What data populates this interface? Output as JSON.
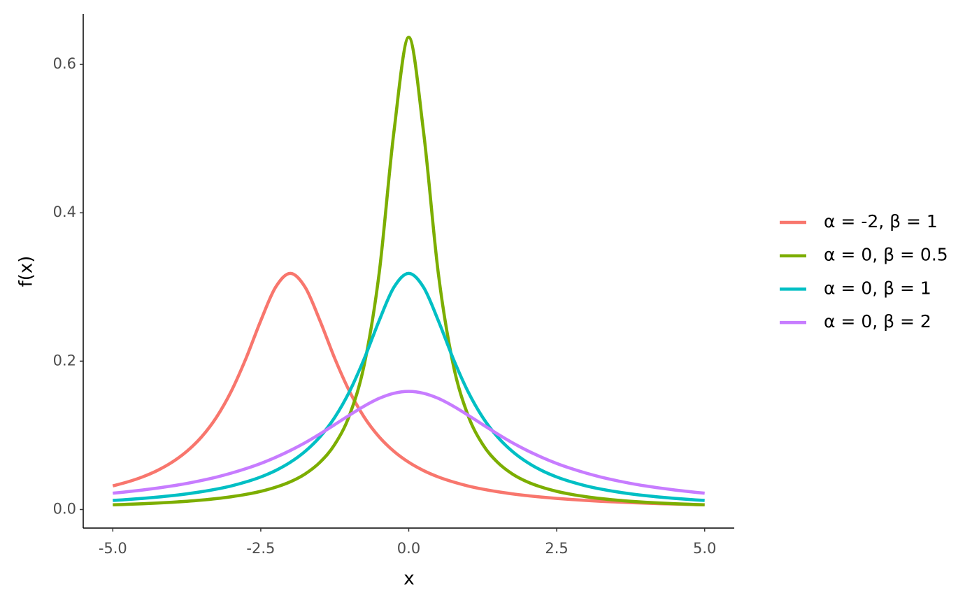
{
  "chart_data": {
    "type": "line",
    "x_label": "x",
    "y_label": "f(x)",
    "x": [
      -5,
      -4.75,
      -4.5,
      -4.25,
      -4,
      -3.75,
      -3.5,
      -3.25,
      -3,
      -2.75,
      -2.5,
      -2.25,
      -2,
      -1.75,
      -1.5,
      -1.25,
      -1,
      -0.75,
      -0.5,
      -0.25,
      0,
      0.25,
      0.5,
      0.75,
      1,
      1.25,
      1.5,
      1.75,
      2,
      2.25,
      2.5,
      2.75,
      3,
      3.25,
      3.5,
      3.75,
      4,
      4.25,
      4.5,
      4.75,
      5
    ],
    "series": [
      {
        "name": "α = -2, β = 1",
        "color": "#F8766D",
        "values": [
          0.0318,
          0.0372,
          0.0439,
          0.0525,
          0.0637,
          0.0784,
          0.0979,
          0.1242,
          0.1592,
          0.2037,
          0.2546,
          0.2996,
          0.3183,
          0.2996,
          0.2546,
          0.2037,
          0.1592,
          0.1242,
          0.0979,
          0.0784,
          0.0637,
          0.0525,
          0.0439,
          0.0372,
          0.0318,
          0.0275,
          0.024,
          0.0211,
          0.0187,
          0.0167,
          0.015,
          0.0135,
          0.0122,
          0.0111,
          0.0102,
          0.0093,
          0.0086,
          0.0079,
          0.0074,
          0.0068,
          0.0064
        ]
      },
      {
        "name": "α = 0, β = 0.5",
        "color": "#7CAE00",
        "values": [
          0.0063,
          0.007,
          0.0078,
          0.0087,
          0.0098,
          0.0111,
          0.0127,
          0.0147,
          0.0172,
          0.0204,
          0.0245,
          0.03,
          0.0374,
          0.048,
          0.0637,
          0.0878,
          0.1273,
          0.1959,
          0.3183,
          0.5093,
          0.6366,
          0.5093,
          0.3183,
          0.1959,
          0.1273,
          0.0878,
          0.0637,
          0.048,
          0.0374,
          0.03,
          0.0245,
          0.0204,
          0.0172,
          0.0147,
          0.0127,
          0.0111,
          0.0098,
          0.0087,
          0.0078,
          0.007,
          0.0063
        ]
      },
      {
        "name": "α = 0, β = 1",
        "color": "#00BFC4",
        "values": [
          0.0122,
          0.0135,
          0.015,
          0.0167,
          0.0187,
          0.0211,
          0.024,
          0.0275,
          0.0318,
          0.0372,
          0.0439,
          0.0525,
          0.0637,
          0.0784,
          0.0979,
          0.1242,
          0.1592,
          0.2037,
          0.2546,
          0.2996,
          0.3183,
          0.2996,
          0.2546,
          0.2037,
          0.1592,
          0.1242,
          0.0979,
          0.0784,
          0.0637,
          0.0525,
          0.0439,
          0.0372,
          0.0318,
          0.0275,
          0.024,
          0.0211,
          0.0187,
          0.0167,
          0.015,
          0.0135,
          0.0122
        ]
      },
      {
        "name": "α = 0, β = 2",
        "color": "#C77CFF",
        "values": [
          0.022,
          0.024,
          0.0263,
          0.0289,
          0.0318,
          0.0352,
          0.0392,
          0.0437,
          0.049,
          0.0551,
          0.0621,
          0.0703,
          0.0796,
          0.0901,
          0.1019,
          0.1145,
          0.1273,
          0.1395,
          0.1498,
          0.1567,
          0.1592,
          0.1567,
          0.1498,
          0.1395,
          0.1273,
          0.1145,
          0.1019,
          0.0901,
          0.0796,
          0.0703,
          0.0621,
          0.0551,
          0.049,
          0.0437,
          0.0392,
          0.0352,
          0.0318,
          0.0289,
          0.0263,
          0.024,
          0.022
        ]
      }
    ],
    "xlim": [
      -5.5,
      5.5
    ],
    "ylim": [
      -0.025,
      0.668
    ],
    "xticks": [
      {
        "value": -5,
        "label": "-5.0"
      },
      -2.5,
      {
        "value": 0,
        "label": "0.0"
      },
      2.5,
      {
        "value": 5,
        "label": "5.0"
      }
    ],
    "yticks": [
      {
        "value": 0,
        "label": "0.0"
      },
      0.2,
      0.4,
      0.6
    ],
    "grid": false,
    "legend": "right"
  }
}
